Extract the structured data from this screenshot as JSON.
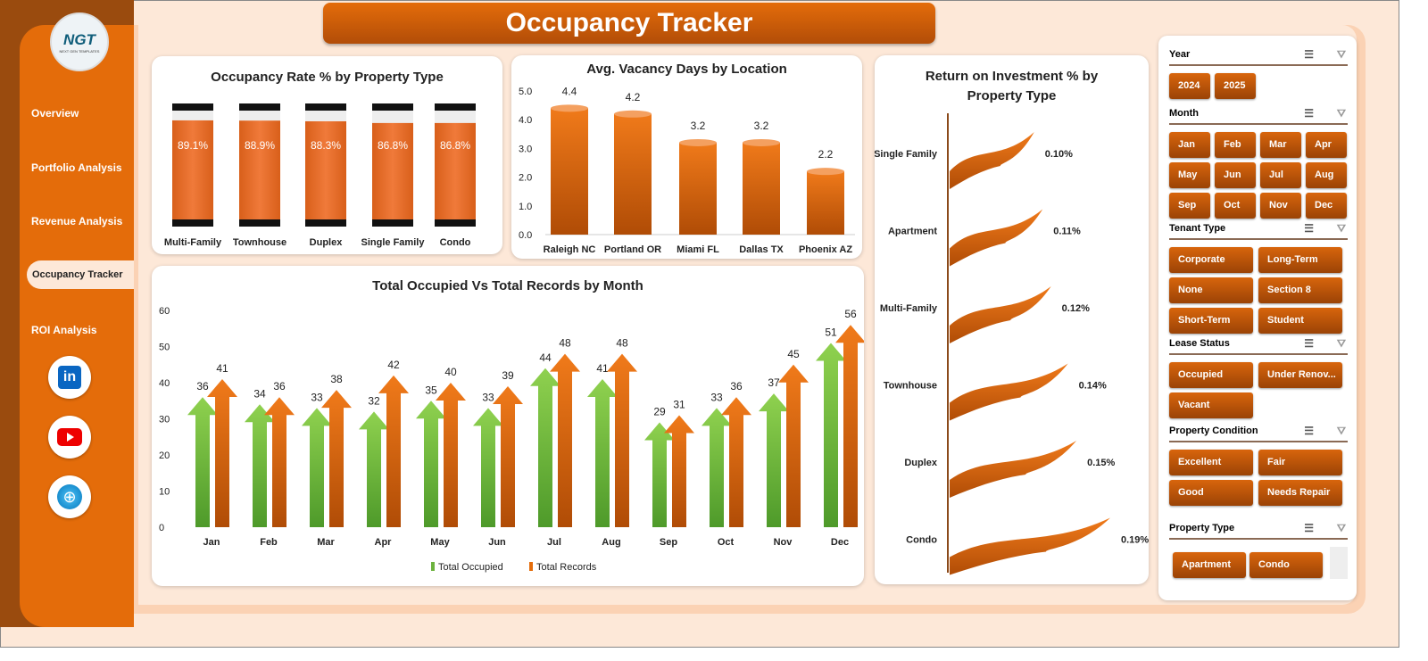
{
  "title": "Occupancy Tracker",
  "logo": {
    "text": "NGT",
    "subtitle": "NEXT GEN TEMPLATES"
  },
  "nav": [
    {
      "label": "Overview"
    },
    {
      "label": "Portfolio Analysis"
    },
    {
      "label": "Revenue Analysis"
    },
    {
      "label": "Occupancy Tracker",
      "active": true
    },
    {
      "label": "ROI Analysis"
    }
  ],
  "social": [
    "linkedin-icon",
    "youtube-icon",
    "globe-icon"
  ],
  "colors": {
    "orange": "#e46c0a",
    "green": "#6db33f",
    "brown": "#9a4b0e"
  },
  "chart_data": [
    {
      "type": "bar",
      "title": "Occupancy Rate % by Property Type",
      "categories": [
        "Multi-Family",
        "Townhouse",
        "Duplex",
        "Single Family",
        "Condo"
      ],
      "values": [
        89.1,
        88.9,
        88.3,
        86.8,
        86.8
      ],
      "labels": [
        "89.1%",
        "88.9%",
        "88.3%",
        "86.8%",
        "86.8%"
      ]
    },
    {
      "type": "bar",
      "title": "Avg. Vacancy Days by Location",
      "categories": [
        "Raleigh NC",
        "Portland OR",
        "Miami FL",
        "Dallas TX",
        "Phoenix AZ"
      ],
      "values": [
        4.4,
        4.2,
        3.2,
        3.2,
        2.2
      ],
      "ylim": [
        0,
        5
      ],
      "yticks": [
        "0.0",
        "1.0",
        "2.0",
        "3.0",
        "4.0",
        "5.0"
      ]
    },
    {
      "type": "bar",
      "title": "Return on Investment % by Property Type",
      "categories": [
        "Single Family",
        "Apartment",
        "Multi-Family",
        "Townhouse",
        "Duplex",
        "Condo"
      ],
      "values": [
        0.1,
        0.11,
        0.12,
        0.14,
        0.15,
        0.19
      ],
      "labels": [
        "0.10%",
        "0.11%",
        "0.12%",
        "0.14%",
        "0.15%",
        "0.19%"
      ]
    },
    {
      "type": "bar",
      "title": "Total Occupied Vs Total Records by Month",
      "categories": [
        "Jan",
        "Feb",
        "Mar",
        "Apr",
        "May",
        "Jun",
        "Jul",
        "Aug",
        "Sep",
        "Oct",
        "Nov",
        "Dec"
      ],
      "ylim": [
        0,
        60
      ],
      "yticks": [
        "0",
        "10",
        "20",
        "30",
        "40",
        "50",
        "60"
      ],
      "legend": "bottom",
      "series": [
        {
          "name": "Total Occupied",
          "values": [
            36,
            34,
            33,
            32,
            35,
            33,
            44,
            41,
            29,
            33,
            37,
            51
          ]
        },
        {
          "name": "Total Records",
          "values": [
            41,
            36,
            38,
            42,
            40,
            39,
            48,
            48,
            31,
            36,
            45,
            56
          ]
        }
      ]
    }
  ],
  "slicers": [
    {
      "title": "Year",
      "items": [
        "2024",
        "2025"
      ]
    },
    {
      "title": "Month",
      "items": [
        "Jan",
        "Feb",
        "Mar",
        "Apr",
        "May",
        "Jun",
        "Jul",
        "Aug",
        "Sep",
        "Oct",
        "Nov",
        "Dec"
      ]
    },
    {
      "title": "Tenant Type",
      "items": [
        "Corporate",
        "Long-Term",
        "None",
        "Section 8",
        "Short-Term",
        "Student"
      ]
    },
    {
      "title": "Lease Status",
      "items": [
        "Occupied",
        "Under Renov...",
        "Vacant"
      ]
    },
    {
      "title": "Property Condition",
      "items": [
        "Excellent",
        "Fair",
        "Good",
        "Needs Repair"
      ]
    },
    {
      "title": "Property Type",
      "items": [
        "Apartment",
        "Condo"
      ]
    }
  ]
}
